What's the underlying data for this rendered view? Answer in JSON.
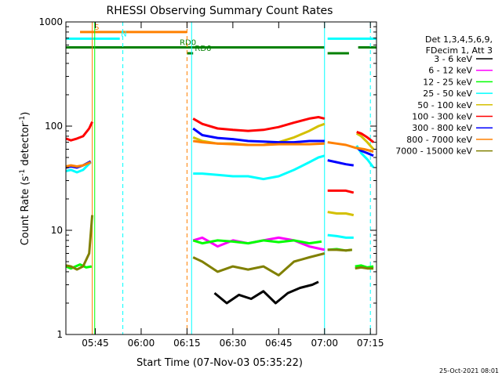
{
  "chart_data": {
    "type": "line",
    "title": "RHESSI Observing Summary Count Rates",
    "xlabel": "Start Time (07-Nov-03 05:35:22)",
    "ylabel_main": "Count Rate (s",
    "ylabel_sup1": "-1",
    "ylabel_mid": " detector",
    "ylabel_sup2": "-1",
    "ylabel_end": ")",
    "yscale": "log",
    "ylim": [
      1,
      1000
    ],
    "xlim_min": [
      35.37,
      137
    ],
    "x_ticks": [
      {
        "v": 45,
        "label": "05:45"
      },
      {
        "v": 60,
        "label": "06:00"
      },
      {
        "v": 75,
        "label": "06:15"
      },
      {
        "v": 90,
        "label": "06:30"
      },
      {
        "v": 105,
        "label": "06:45"
      },
      {
        "v": 120,
        "label": "07:00"
      },
      {
        "v": 135,
        "label": "07:15"
      }
    ],
    "y_ticks": [
      {
        "v": 1,
        "label": "1"
      },
      {
        "v": 10,
        "label": "10"
      },
      {
        "v": 100,
        "label": "100"
      },
      {
        "v": 1000,
        "label": "1000"
      }
    ],
    "timestamp": "25-Oct-2021 08:01",
    "legend": {
      "header": [
        "Det 1,3,4,5,6,9,",
        "FDecim 1, Att 3"
      ],
      "entries": [
        {
          "label": "3 - 6 keV",
          "color": "#000000"
        },
        {
          "label": "6 - 12 keV",
          "color": "#ff00ff"
        },
        {
          "label": "12 - 25 keV",
          "color": "#00ff00"
        },
        {
          "label": "25 - 50 keV",
          "color": "#00ffff"
        },
        {
          "label": "50 - 100 keV",
          "color": "#d4c000"
        },
        {
          "label": "100 - 300 keV",
          "color": "#ff0000"
        },
        {
          "label": "300 - 800 keV",
          "color": "#0000ff"
        },
        {
          "label": "800 - 7000 keV",
          "color": "#ff8000"
        },
        {
          "label": "7000 - 15000 keV",
          "color": "#808000"
        }
      ]
    },
    "flag_bars": [
      {
        "label": "S",
        "color": "#ff8000",
        "y": 800,
        "segments": [
          [
            40,
            75
          ]
        ]
      },
      {
        "label": "N",
        "color": "#00ffff",
        "y": 690,
        "segments": [
          [
            35.4,
            53
          ],
          [
            121,
            137
          ]
        ]
      },
      {
        "label": "RD0",
        "color": "#008000",
        "y": 570,
        "segments": [
          [
            35.4,
            120
          ],
          [
            131,
            137
          ]
        ]
      },
      {
        "label": "RD6",
        "color": "#008000",
        "y": 500,
        "segments": [
          [
            75,
            77
          ],
          [
            121,
            128
          ]
        ]
      }
    ],
    "vertical_lines": [
      {
        "x": 44.0,
        "color": "#ff8000",
        "style": "solid"
      },
      {
        "x": 44.8,
        "color": "#00ff00",
        "style": "solid"
      },
      {
        "x": 54.0,
        "color": "#00ffff",
        "style": "dashed"
      },
      {
        "x": 75.0,
        "color": "#ff8000",
        "style": "dashed"
      },
      {
        "x": 76.5,
        "color": "#00ffff",
        "style": "solid"
      },
      {
        "x": 120.0,
        "color": "#00ffff",
        "style": "solid"
      },
      {
        "x": 135.0,
        "color": "#00ffff",
        "style": "dashed"
      }
    ],
    "series": [
      {
        "name": "3 - 6 keV",
        "color": "#000000",
        "segments": [
          {
            "x": [
              84,
              88,
              92,
              96,
              100,
              104,
              108,
              112,
              116,
              118
            ],
            "y": [
              2.5,
              2.0,
              2.4,
              2.2,
              2.6,
              2.0,
              2.5,
              2.8,
              3.0,
              3.2
            ]
          }
        ]
      },
      {
        "name": "6 - 12 keV",
        "color": "#ff00ff",
        "segments": [
          {
            "x": [
              77,
              80,
              85,
              90,
              95,
              100,
              105,
              110,
              115,
              120
            ],
            "y": [
              8.0,
              8.5,
              7.0,
              8.0,
              7.5,
              8.0,
              8.5,
              8.0,
              7.0,
              6.5
            ]
          }
        ]
      },
      {
        "name": "12 - 25 keV",
        "color": "#00ff00",
        "segments": [
          {
            "x": [
              35.4,
              37,
              40,
              42,
              43.8
            ],
            "y": [
              4.5,
              4.3,
              4.7,
              4.4,
              4.5
            ]
          },
          {
            "x": [
              77,
              80,
              85,
              90,
              95,
              100,
              105,
              110,
              115,
              119
            ],
            "y": [
              8.0,
              7.5,
              8.0,
              7.8,
              7.5,
              8.0,
              7.7,
              8.0,
              7.5,
              7.8
            ]
          },
          {
            "x": [
              121,
              124,
              127,
              129
            ],
            "y": [
              6.5,
              6.6,
              6.4,
              6.5
            ]
          },
          {
            "x": [
              130,
              132,
              134,
              136
            ],
            "y": [
              4.5,
              4.6,
              4.4,
              4.5
            ]
          }
        ]
      },
      {
        "name": "25 - 50 keV",
        "color": "#00ffff",
        "segments": [
          {
            "x": [
              35.4,
              37,
              39,
              41,
              43.5
            ],
            "y": [
              37,
              38,
              36,
              38,
              45
            ]
          },
          {
            "x": [
              77,
              80,
              85,
              90,
              95,
              100,
              105,
              110,
              115,
              118,
              120
            ],
            "y": [
              35,
              35,
              34,
              33,
              33,
              31,
              33,
              38,
              45,
              50,
              52
            ]
          },
          {
            "x": [
              121,
              124,
              127,
              129.5
            ],
            "y": [
              9.0,
              8.8,
              8.5,
              8.5
            ]
          },
          {
            "x": [
              130.5,
              132,
              134,
              136
            ],
            "y": [
              65,
              55,
              48,
              40
            ]
          }
        ]
      },
      {
        "name": "50 - 100 keV",
        "color": "#d4c000",
        "segments": [
          {
            "x": [
              77,
              80,
              85,
              90,
              95,
              100,
              105,
              110,
              115,
              118,
              120
            ],
            "y": [
              78,
              72,
              68,
              68,
              66,
              66,
              70,
              78,
              90,
              100,
              105
            ]
          },
          {
            "x": [
              121,
              124,
              127,
              129.5
            ],
            "y": [
              15,
              14.5,
              14.5,
              14
            ]
          },
          {
            "x": [
              130.5,
              132,
              134,
              136
            ],
            "y": [
              85,
              80,
              70,
              60
            ]
          }
        ]
      },
      {
        "name": "100 - 300 keV",
        "color": "#ff0000",
        "segments": [
          {
            "x": [
              35.4,
              37,
              39,
              41,
              43,
              44
            ],
            "y": [
              76,
              73,
              76,
              80,
              95,
              110
            ]
          },
          {
            "x": [
              77,
              80,
              85,
              90,
              95,
              100,
              105,
              110,
              115,
              118,
              120
            ],
            "y": [
              118,
              105,
              95,
              92,
              90,
              92,
              98,
              108,
              118,
              122,
              118
            ]
          },
          {
            "x": [
              121,
              124,
              127,
              129.5
            ],
            "y": [
              24,
              24,
              24,
              23
            ]
          },
          {
            "x": [
              130.5,
              132,
              134,
              136
            ],
            "y": [
              88,
              85,
              78,
              70
            ]
          }
        ]
      },
      {
        "name": "300 - 800 keV",
        "color": "#0000ff",
        "segments": [
          {
            "x": [
              35.4,
              37,
              39,
              41,
              43.5
            ],
            "y": [
              40,
              41,
              40,
              42,
              46
            ]
          },
          {
            "x": [
              77,
              80,
              85,
              90,
              95,
              100,
              105,
              110,
              115,
              118,
              120
            ],
            "y": [
              95,
              82,
              77,
              75,
              72,
              71,
              70,
              70,
              72,
              72,
              72
            ]
          },
          {
            "x": [
              121,
              124,
              127,
              129.5
            ],
            "y": [
              47,
              45,
              43,
              42
            ]
          },
          {
            "x": [
              130.5,
              132,
              134,
              136
            ],
            "y": [
              62,
              58,
              55,
              52
            ]
          }
        ]
      },
      {
        "name": "800 - 7000 keV",
        "color": "#ff8000",
        "segments": [
          {
            "x": [
              35.4,
              37,
              39,
              41,
              43.5
            ],
            "y": [
              41,
              42,
              41,
              42,
              45
            ]
          },
          {
            "x": [
              77,
              80,
              85,
              90,
              95,
              100,
              105,
              110,
              115,
              120
            ],
            "y": [
              72,
              70,
              68,
              67,
              66,
              66,
              67,
              67,
              67,
              68
            ]
          },
          {
            "x": [
              121,
              124,
              127,
              130,
              133,
              136
            ],
            "y": [
              70,
              68,
              66,
              62,
              60,
              57
            ]
          }
        ]
      },
      {
        "name": "7000 - 15000 keV",
        "color": "#808000",
        "segments": [
          {
            "x": [
              35.4,
              37,
              39,
              41,
              43,
              44
            ],
            "y": [
              4.6,
              4.5,
              4.2,
              4.5,
              6.0,
              14.0
            ]
          },
          {
            "x": [
              77,
              80,
              85,
              90,
              95,
              100,
              105,
              110,
              115,
              120
            ],
            "y": [
              5.5,
              5.0,
              4.0,
              4.5,
              4.2,
              4.5,
              3.7,
              5.0,
              5.5,
              6.0
            ]
          },
          {
            "x": [
              121,
              124,
              127,
              129
            ],
            "y": [
              6.5,
              6.5,
              6.4,
              6.5
            ]
          },
          {
            "x": [
              130,
              132,
              134,
              136
            ],
            "y": [
              4.3,
              4.4,
              4.3,
              4.3
            ]
          }
        ]
      }
    ]
  }
}
